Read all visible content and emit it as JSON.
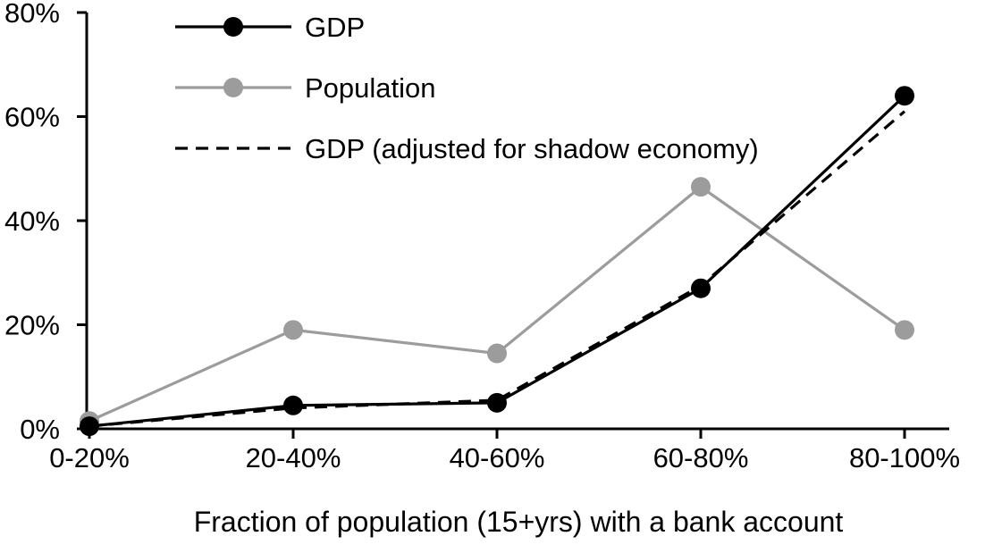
{
  "chart_data": {
    "type": "line",
    "title": "",
    "xlabel": "Fraction of population (15+yrs) with a bank account",
    "ylabel": "",
    "categories": [
      "0-20%",
      "20-40%",
      "40-60%",
      "60-80%",
      "80-100%"
    ],
    "y_ticks": [
      "0%",
      "20%",
      "40%",
      "60%",
      "80%"
    ],
    "ylim": [
      0,
      80
    ],
    "grid": false,
    "legend_position": "top-left",
    "series": [
      {
        "name": "GDP",
        "style": "solid",
        "color": "#000000",
        "marker": true,
        "values": [
          0.5,
          4.5,
          5,
          27,
          64
        ]
      },
      {
        "name": "Population",
        "style": "solid",
        "color": "#9c9c9c",
        "marker": true,
        "values": [
          1.5,
          19,
          14.5,
          46.5,
          19
        ]
      },
      {
        "name": "GDP (adjusted for shadow economy)",
        "style": "dashed",
        "color": "#000000",
        "marker": false,
        "values": [
          0.5,
          4,
          5.5,
          27.5,
          61
        ]
      }
    ]
  }
}
